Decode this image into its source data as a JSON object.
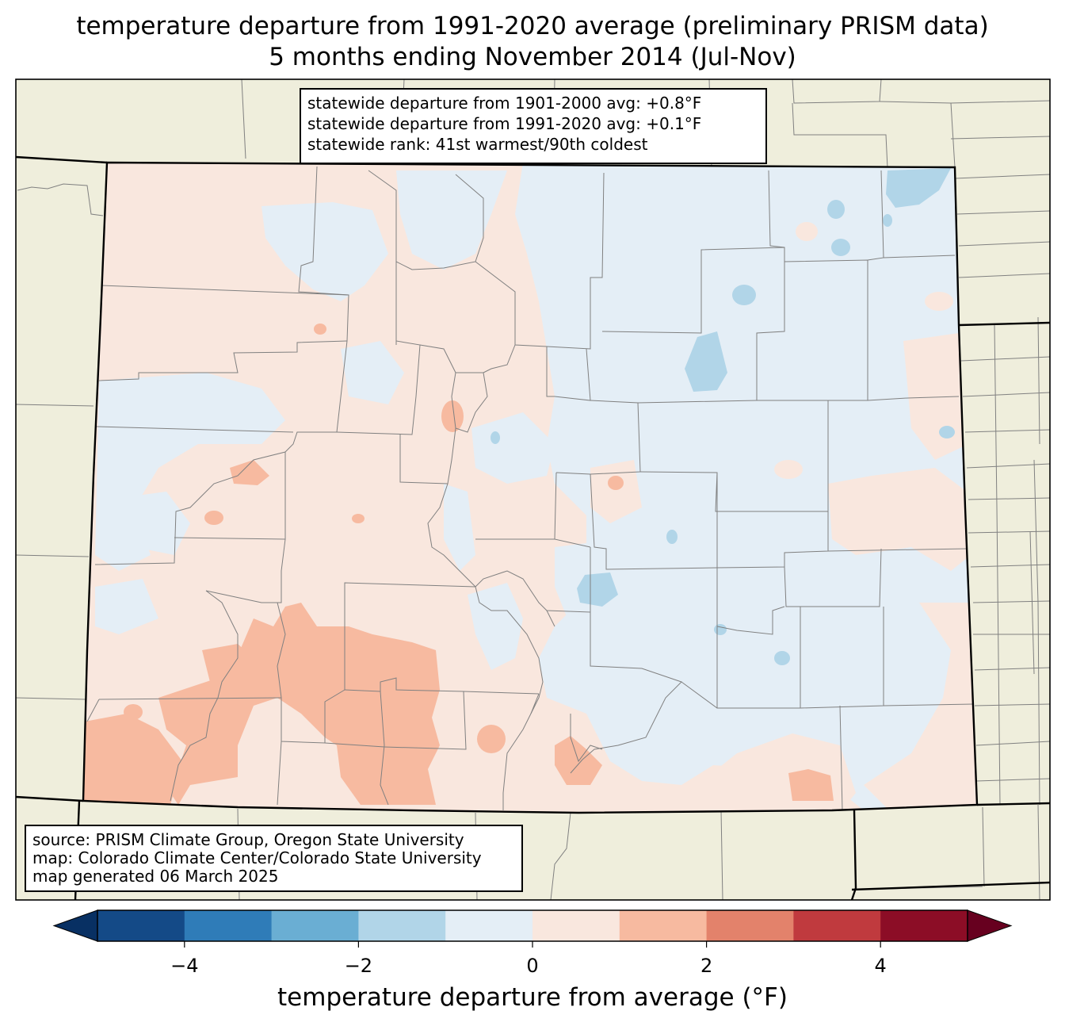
{
  "title": {
    "line1": "temperature departure from 1991-2020 average (preliminary PRISM data)",
    "line2": "5 months ending November 2014 (Jul-Nov)"
  },
  "stats": {
    "line1": "statewide departure from 1901-2000 avg: +0.8°F",
    "line2": "statewide departure from 1991-2020 avg: +0.1°F",
    "line3": "statewide rank: 41st warmest/90th coldest"
  },
  "source": {
    "line1": "source: PRISM Climate Group, Oregon State University",
    "line2": "map: Colorado Climate Center/Colorado State University",
    "line3": "map generated 06 March 2025"
  },
  "colorbar": {
    "label": "temperature departure from average (°F)",
    "ticks": [
      "−4",
      "−2",
      "0",
      "2",
      "4"
    ],
    "range": [
      -5,
      5
    ],
    "bins": [
      {
        "min": -5,
        "max": -4,
        "color": "#144a87"
      },
      {
        "min": -4,
        "max": -3,
        "color": "#2f7cb8"
      },
      {
        "min": -3,
        "max": -2,
        "color": "#6aaed3"
      },
      {
        "min": -2,
        "max": -1,
        "color": "#b1d5e8"
      },
      {
        "min": -1,
        "max": 0,
        "color": "#e4eef6"
      },
      {
        "min": 0,
        "max": 1,
        "color": "#f9e7de"
      },
      {
        "min": 1,
        "max": 2,
        "color": "#f7baa0"
      },
      {
        "min": 2,
        "max": 3,
        "color": "#e3826b"
      },
      {
        "min": 3,
        "max": 4,
        "color": "#c03a3e"
      },
      {
        "min": 4,
        "max": 5,
        "color": "#8c0d26"
      }
    ],
    "under_color": "#083063",
    "over_color": "#67001f"
  },
  "colors": {
    "land_outside": "#efeedc",
    "state_border": "#000000",
    "county_border": "#808080"
  }
}
